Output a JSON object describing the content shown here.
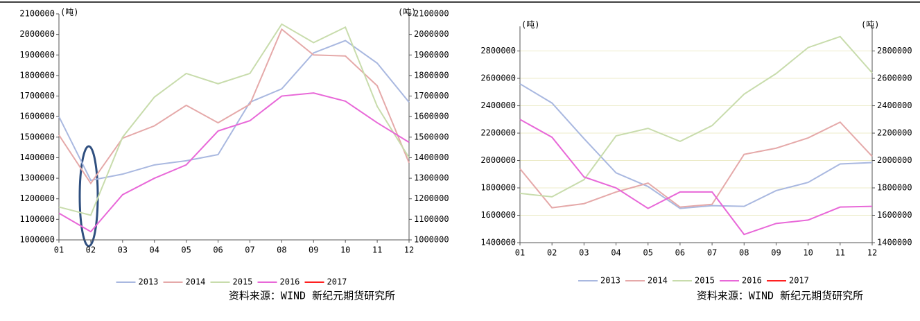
{
  "chart_data": [
    {
      "type": "line",
      "y_unit": "(吨)",
      "source": "资料来源：WIND  新纪元期货研究所",
      "categories": [
        "01",
        "02",
        "03",
        "04",
        "05",
        "06",
        "07",
        "08",
        "09",
        "10",
        "11",
        "12"
      ],
      "ylim": [
        1000000,
        2100000
      ],
      "yticks": [
        1000000,
        1100000,
        1200000,
        1300000,
        1400000,
        1500000,
        1600000,
        1700000,
        1800000,
        1900000,
        2000000,
        2100000
      ],
      "grid": false,
      "series": [
        {
          "name": "2013",
          "color": "#a9b8e0",
          "values": [
            1600000,
            1290000,
            1320000,
            1365000,
            1385000,
            1415000,
            1670000,
            1735000,
            1910000,
            1970000,
            1860000,
            1670000
          ]
        },
        {
          "name": "2014",
          "color": "#e5a9a9",
          "values": [
            1510000,
            1275000,
            1495000,
            1555000,
            1655000,
            1570000,
            1660000,
            2025000,
            1900000,
            1895000,
            1750000,
            1375000
          ]
        },
        {
          "name": "2015",
          "color": "#c8dcac",
          "values": [
            1160000,
            1120000,
            1500000,
            1695000,
            1810000,
            1760000,
            1810000,
            2050000,
            1960000,
            2035000,
            1650000,
            1400000
          ]
        },
        {
          "name": "2016",
          "color": "#e868d8",
          "values": [
            1130000,
            1040000,
            1220000,
            1300000,
            1365000,
            1530000,
            1580000,
            1700000,
            1715000,
            1675000,
            1570000,
            1475000
          ]
        },
        {
          "name": "2017",
          "color": "#ff2020",
          "values": [
            null,
            null,
            null,
            null,
            null,
            null,
            null,
            null,
            null,
            null,
            null,
            null
          ]
        }
      ]
    },
    {
      "type": "line",
      "y_unit": "(吨)",
      "source": "资料来源：WIND  新纪元期货研究所",
      "categories": [
        "01",
        "02",
        "03",
        "04",
        "05",
        "06",
        "07",
        "08",
        "09",
        "10",
        "11",
        "12"
      ],
      "ylim": [
        1400000,
        2980000
      ],
      "yticks": [
        1400000,
        1600000,
        1800000,
        2000000,
        2200000,
        2400000,
        2600000,
        2800000
      ],
      "grid": true,
      "series": [
        {
          "name": "2013",
          "color": "#a9b8e0",
          "values": [
            2560000,
            2420000,
            2160000,
            1910000,
            1810000,
            1650000,
            1670000,
            1665000,
            1780000,
            1840000,
            1975000,
            1985000
          ]
        },
        {
          "name": "2014",
          "color": "#e5a9a9",
          "values": [
            1940000,
            1655000,
            1685000,
            1770000,
            1835000,
            1660000,
            1680000,
            2045000,
            2090000,
            2165000,
            2280000,
            2030000
          ]
        },
        {
          "name": "2015",
          "color": "#c8dcac",
          "values": [
            1760000,
            1735000,
            1860000,
            2180000,
            2235000,
            2140000,
            2255000,
            2485000,
            2635000,
            2825000,
            2905000,
            2640000
          ]
        },
        {
          "name": "2016",
          "color": "#e868d8",
          "values": [
            2300000,
            2170000,
            1880000,
            1800000,
            1650000,
            1770000,
            1770000,
            1460000,
            1540000,
            1565000,
            1660000,
            1665000
          ]
        },
        {
          "name": "2017",
          "color": "#ff2020",
          "values": [
            null,
            null,
            null,
            null,
            null,
            null,
            null,
            null,
            null,
            null,
            null,
            null
          ]
        }
      ]
    }
  ]
}
